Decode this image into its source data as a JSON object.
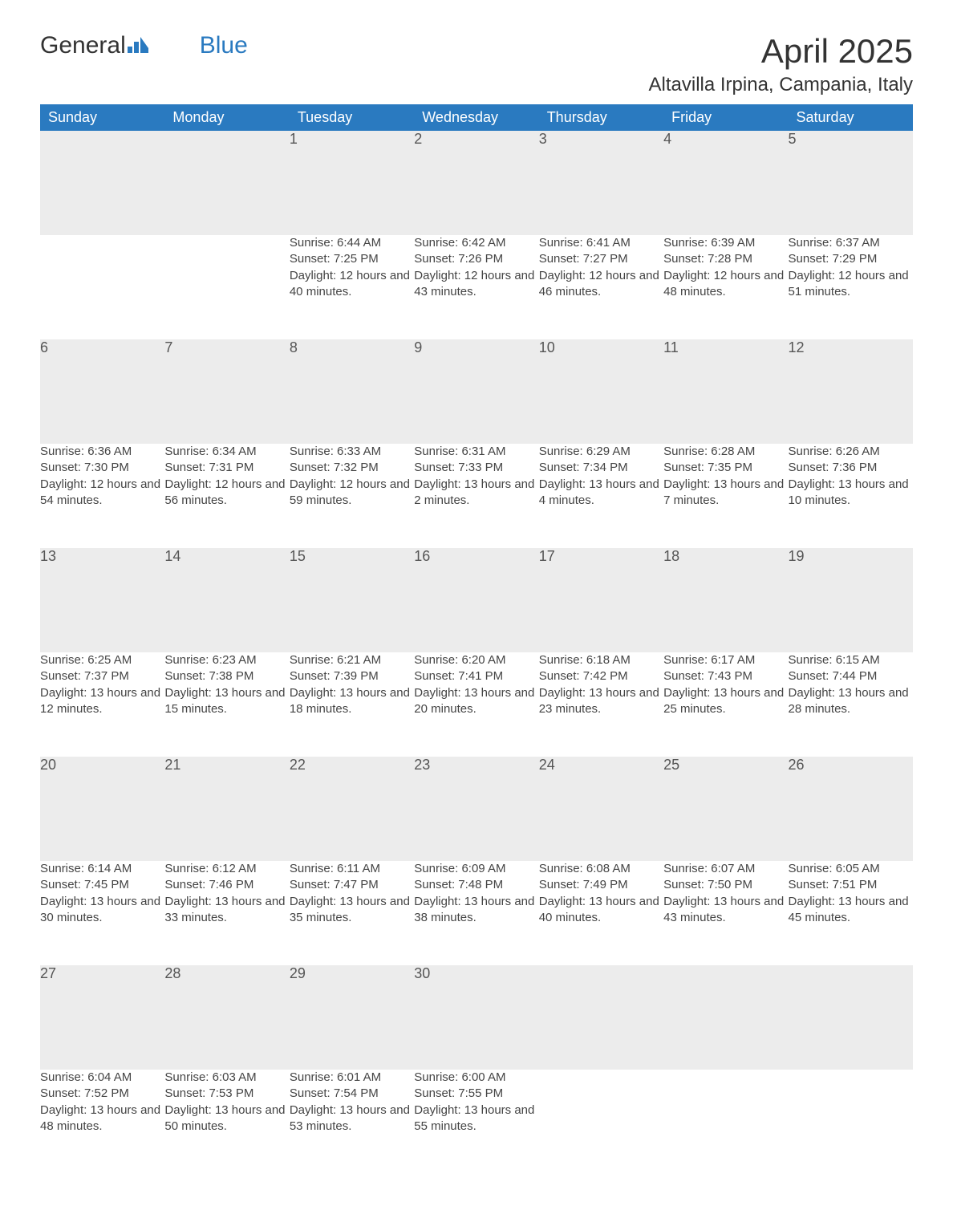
{
  "brand": {
    "part1": "General",
    "part2": "Blue"
  },
  "title": "April 2025",
  "location": "Altavilla Irpina, Campania, Italy",
  "colors": {
    "header_bg": "#2a7ac0",
    "header_text": "#ffffff",
    "daynum_bg": "#ececec",
    "daynum_border": "#2a7ac0",
    "text": "#333333",
    "logo_blue": "#2a7ac0"
  },
  "weekdays": [
    "Sunday",
    "Monday",
    "Tuesday",
    "Wednesday",
    "Thursday",
    "Friday",
    "Saturday"
  ],
  "weeks": [
    [
      null,
      null,
      {
        "n": "1",
        "sunrise": "Sunrise: 6:44 AM",
        "sunset": "Sunset: 7:25 PM",
        "daylight": "Daylight: 12 hours and 40 minutes."
      },
      {
        "n": "2",
        "sunrise": "Sunrise: 6:42 AM",
        "sunset": "Sunset: 7:26 PM",
        "daylight": "Daylight: 12 hours and 43 minutes."
      },
      {
        "n": "3",
        "sunrise": "Sunrise: 6:41 AM",
        "sunset": "Sunset: 7:27 PM",
        "daylight": "Daylight: 12 hours and 46 minutes."
      },
      {
        "n": "4",
        "sunrise": "Sunrise: 6:39 AM",
        "sunset": "Sunset: 7:28 PM",
        "daylight": "Daylight: 12 hours and 48 minutes."
      },
      {
        "n": "5",
        "sunrise": "Sunrise: 6:37 AM",
        "sunset": "Sunset: 7:29 PM",
        "daylight": "Daylight: 12 hours and 51 minutes."
      }
    ],
    [
      {
        "n": "6",
        "sunrise": "Sunrise: 6:36 AM",
        "sunset": "Sunset: 7:30 PM",
        "daylight": "Daylight: 12 hours and 54 minutes."
      },
      {
        "n": "7",
        "sunrise": "Sunrise: 6:34 AM",
        "sunset": "Sunset: 7:31 PM",
        "daylight": "Daylight: 12 hours and 56 minutes."
      },
      {
        "n": "8",
        "sunrise": "Sunrise: 6:33 AM",
        "sunset": "Sunset: 7:32 PM",
        "daylight": "Daylight: 12 hours and 59 minutes."
      },
      {
        "n": "9",
        "sunrise": "Sunrise: 6:31 AM",
        "sunset": "Sunset: 7:33 PM",
        "daylight": "Daylight: 13 hours and 2 minutes."
      },
      {
        "n": "10",
        "sunrise": "Sunrise: 6:29 AM",
        "sunset": "Sunset: 7:34 PM",
        "daylight": "Daylight: 13 hours and 4 minutes."
      },
      {
        "n": "11",
        "sunrise": "Sunrise: 6:28 AM",
        "sunset": "Sunset: 7:35 PM",
        "daylight": "Daylight: 13 hours and 7 minutes."
      },
      {
        "n": "12",
        "sunrise": "Sunrise: 6:26 AM",
        "sunset": "Sunset: 7:36 PM",
        "daylight": "Daylight: 13 hours and 10 minutes."
      }
    ],
    [
      {
        "n": "13",
        "sunrise": "Sunrise: 6:25 AM",
        "sunset": "Sunset: 7:37 PM",
        "daylight": "Daylight: 13 hours and 12 minutes."
      },
      {
        "n": "14",
        "sunrise": "Sunrise: 6:23 AM",
        "sunset": "Sunset: 7:38 PM",
        "daylight": "Daylight: 13 hours and 15 minutes."
      },
      {
        "n": "15",
        "sunrise": "Sunrise: 6:21 AM",
        "sunset": "Sunset: 7:39 PM",
        "daylight": "Daylight: 13 hours and 18 minutes."
      },
      {
        "n": "16",
        "sunrise": "Sunrise: 6:20 AM",
        "sunset": "Sunset: 7:41 PM",
        "daylight": "Daylight: 13 hours and 20 minutes."
      },
      {
        "n": "17",
        "sunrise": "Sunrise: 6:18 AM",
        "sunset": "Sunset: 7:42 PM",
        "daylight": "Daylight: 13 hours and 23 minutes."
      },
      {
        "n": "18",
        "sunrise": "Sunrise: 6:17 AM",
        "sunset": "Sunset: 7:43 PM",
        "daylight": "Daylight: 13 hours and 25 minutes."
      },
      {
        "n": "19",
        "sunrise": "Sunrise: 6:15 AM",
        "sunset": "Sunset: 7:44 PM",
        "daylight": "Daylight: 13 hours and 28 minutes."
      }
    ],
    [
      {
        "n": "20",
        "sunrise": "Sunrise: 6:14 AM",
        "sunset": "Sunset: 7:45 PM",
        "daylight": "Daylight: 13 hours and 30 minutes."
      },
      {
        "n": "21",
        "sunrise": "Sunrise: 6:12 AM",
        "sunset": "Sunset: 7:46 PM",
        "daylight": "Daylight: 13 hours and 33 minutes."
      },
      {
        "n": "22",
        "sunrise": "Sunrise: 6:11 AM",
        "sunset": "Sunset: 7:47 PM",
        "daylight": "Daylight: 13 hours and 35 minutes."
      },
      {
        "n": "23",
        "sunrise": "Sunrise: 6:09 AM",
        "sunset": "Sunset: 7:48 PM",
        "daylight": "Daylight: 13 hours and 38 minutes."
      },
      {
        "n": "24",
        "sunrise": "Sunrise: 6:08 AM",
        "sunset": "Sunset: 7:49 PM",
        "daylight": "Daylight: 13 hours and 40 minutes."
      },
      {
        "n": "25",
        "sunrise": "Sunrise: 6:07 AM",
        "sunset": "Sunset: 7:50 PM",
        "daylight": "Daylight: 13 hours and 43 minutes."
      },
      {
        "n": "26",
        "sunrise": "Sunrise: 6:05 AM",
        "sunset": "Sunset: 7:51 PM",
        "daylight": "Daylight: 13 hours and 45 minutes."
      }
    ],
    [
      {
        "n": "27",
        "sunrise": "Sunrise: 6:04 AM",
        "sunset": "Sunset: 7:52 PM",
        "daylight": "Daylight: 13 hours and 48 minutes."
      },
      {
        "n": "28",
        "sunrise": "Sunrise: 6:03 AM",
        "sunset": "Sunset: 7:53 PM",
        "daylight": "Daylight: 13 hours and 50 minutes."
      },
      {
        "n": "29",
        "sunrise": "Sunrise: 6:01 AM",
        "sunset": "Sunset: 7:54 PM",
        "daylight": "Daylight: 13 hours and 53 minutes."
      },
      {
        "n": "30",
        "sunrise": "Sunrise: 6:00 AM",
        "sunset": "Sunset: 7:55 PM",
        "daylight": "Daylight: 13 hours and 55 minutes."
      },
      null,
      null,
      null
    ]
  ]
}
